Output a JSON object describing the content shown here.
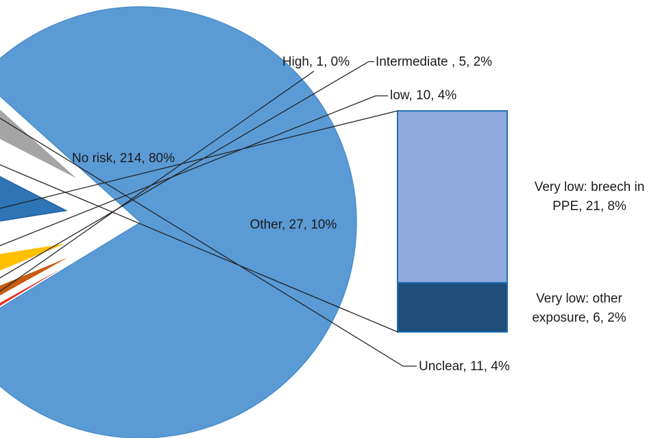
{
  "chart_data": {
    "type": "pie",
    "title": "",
    "slices": [
      {
        "name": "No risk",
        "value": 214,
        "percent": "80%",
        "label": "No risk, 214, 80%",
        "color": "#5b9bd5"
      },
      {
        "name": "High",
        "value": 1,
        "percent": "0%",
        "label": "High, 1, 0%",
        "color": "#e8312a"
      },
      {
        "name": "Intermediate",
        "value": 5,
        "percent": "2%",
        "label": "Intermediate , 5, 2%",
        "color": "#c55a11"
      },
      {
        "name": "low",
        "value": 10,
        "percent": "4%",
        "label": "low, 10, 4%",
        "color": "#ffc000"
      },
      {
        "name": "Other",
        "value": 27,
        "percent": "10%",
        "label": "Other, 27, 10%",
        "color": "#2e75b6"
      },
      {
        "name": "Unclear",
        "value": 11,
        "percent": "4%",
        "label": "Unclear, 11, 4%",
        "color": "#a5a5a5"
      }
    ],
    "breakdown": {
      "of": "Other",
      "type": "stacked-bar",
      "segments": [
        {
          "name": "Very low: breech in PPE",
          "value": 21,
          "percent": "8%",
          "label_lines": [
            "Very low: breech in",
            "PPE, 21, 8%"
          ],
          "color": "#8faadc"
        },
        {
          "name": "Very low: other exposure",
          "value": 6,
          "percent": "2%",
          "label_lines": [
            "Very low: other",
            "exposure, 6, 2%"
          ],
          "color": "#1f4e79"
        }
      ]
    }
  }
}
